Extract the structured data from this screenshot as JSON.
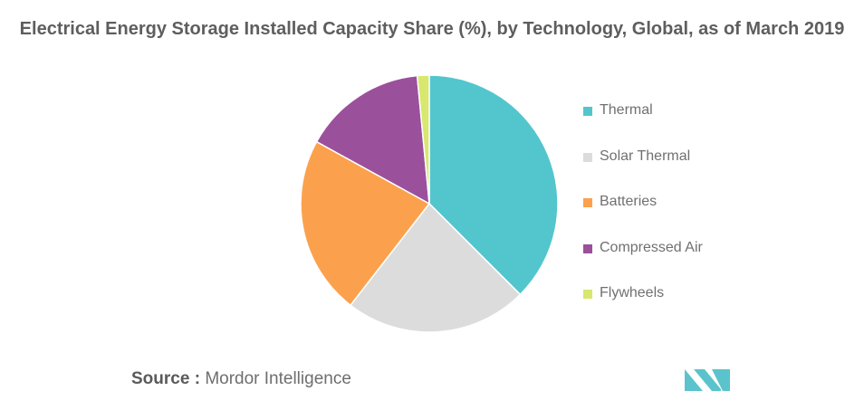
{
  "chart_data": {
    "type": "pie",
    "title": "Electrical Energy Storage Installed Capacity Share (%), by Technology, Global, as of March 2019",
    "categories": [
      "Thermal",
      "Solar Thermal",
      "Batteries",
      "Compressed Air",
      "Flywheels"
    ],
    "values": [
      37.5,
      23,
      22.5,
      15.5,
      1.5
    ],
    "colors": [
      "#53c6cd",
      "#dcdcdc",
      "#fba14d",
      "#9b509c",
      "#d8e76e"
    ],
    "legend_position": "right"
  },
  "source": {
    "prefix": "Source :",
    "text": "Mordor Intelligence"
  },
  "logo": {
    "icon": "mordor-intelligence-logo",
    "color": "#5bc3cb"
  }
}
